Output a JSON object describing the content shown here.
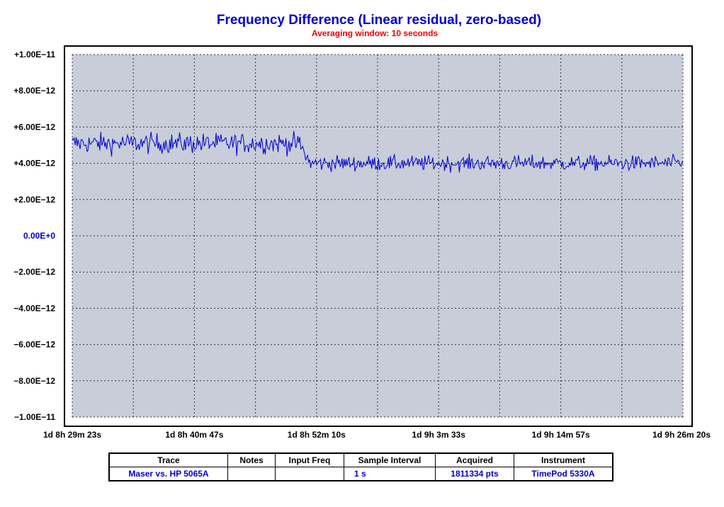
{
  "chart_data": {
    "type": "line",
    "title": "Frequency Difference (Linear residual, zero-based)",
    "subtitle": "Averaging window: 10 seconds",
    "ylim": [
      -1e-11,
      1e-11
    ],
    "y_ticks": [
      "+1.00E−11",
      "+8.00E−12",
      "+6.00E−12",
      "+4.00E−12",
      "+2.00E−12",
      "0.00E+0",
      "−2.00E−12",
      "−4.00E−12",
      "−6.00E−12",
      "−8.00E−12",
      "−1.00E−11"
    ],
    "x_ticks": [
      "1d 8h 29m 23s",
      "1d 8h 40m 47s",
      "1d 8h 52m 10s",
      "1d 9h 3m 33s",
      "1d 9h 14m 57s",
      "1d 9h 26m 20s"
    ],
    "grid": true,
    "colors": {
      "line": "#0000cc",
      "plot_bg": "#c8cdd9",
      "zero_label": "#0000cc"
    },
    "series": [
      {
        "name": "Maser vs. HP 5065A",
        "segments": [
          {
            "x_start_s": 0,
            "x_end_s": 1270,
            "mean": 5.1e-12,
            "spread": 4e-13
          },
          {
            "x_start_s": 1270,
            "x_end_s": 1330,
            "mean_from": 5.1e-12,
            "mean_to": 4e-12,
            "spread": 3.5e-13
          },
          {
            "x_start_s": 1330,
            "x_end_s": 3417,
            "mean": 4e-12,
            "spread": 3e-13
          }
        ]
      }
    ]
  },
  "legend_table": {
    "headers": [
      "Trace",
      "Notes",
      "Input Freq",
      "Sample Interval",
      "Acquired",
      "Instrument"
    ],
    "rows": [
      [
        "Maser vs. HP 5065A",
        "",
        "",
        "1 s",
        "1811334 pts",
        "TimePod 5330A"
      ]
    ]
  }
}
